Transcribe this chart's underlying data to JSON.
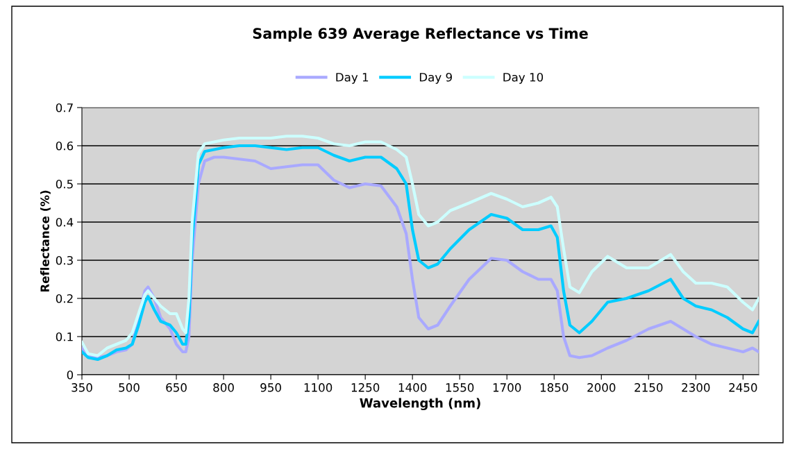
{
  "chart_data": {
    "type": "line",
    "title": "Sample 639 Average Reflectance vs Time",
    "xlabel": "Wavelength (nm)",
    "ylabel": "Reflectance (%)",
    "x": [
      350,
      370,
      400,
      430,
      460,
      490,
      510,
      530,
      550,
      560,
      580,
      600,
      630,
      650,
      670,
      680,
      690,
      700,
      720,
      740,
      770,
      800,
      850,
      900,
      950,
      1000,
      1050,
      1100,
      1150,
      1200,
      1250,
      1300,
      1350,
      1380,
      1400,
      1420,
      1450,
      1480,
      1520,
      1580,
      1650,
      1700,
      1750,
      1800,
      1840,
      1860,
      1880,
      1900,
      1930,
      1970,
      2020,
      2080,
      2150,
      2220,
      2260,
      2300,
      2350,
      2400,
      2450,
      2480,
      2500
    ],
    "series": [
      {
        "name": "Day 1",
        "color": "#a9a9ff",
        "values": [
          0.07,
          0.05,
          0.045,
          0.05,
          0.06,
          0.065,
          0.08,
          0.15,
          0.22,
          0.23,
          0.2,
          0.15,
          0.12,
          0.08,
          0.06,
          0.06,
          0.1,
          0.3,
          0.5,
          0.56,
          0.57,
          0.57,
          0.565,
          0.56,
          0.54,
          0.545,
          0.55,
          0.55,
          0.51,
          0.49,
          0.5,
          0.495,
          0.44,
          0.37,
          0.25,
          0.15,
          0.12,
          0.13,
          0.18,
          0.25,
          0.305,
          0.3,
          0.27,
          0.25,
          0.25,
          0.22,
          0.1,
          0.05,
          0.045,
          0.05,
          0.07,
          0.09,
          0.12,
          0.14,
          0.12,
          0.1,
          0.08,
          0.07,
          0.06,
          0.07,
          0.06
        ]
      },
      {
        "name": "Day 9",
        "color": "#00ccff",
        "values": [
          0.06,
          0.045,
          0.04,
          0.05,
          0.065,
          0.07,
          0.08,
          0.13,
          0.19,
          0.205,
          0.17,
          0.14,
          0.13,
          0.11,
          0.08,
          0.08,
          0.15,
          0.35,
          0.55,
          0.585,
          0.59,
          0.595,
          0.6,
          0.6,
          0.595,
          0.59,
          0.595,
          0.595,
          0.575,
          0.56,
          0.57,
          0.57,
          0.54,
          0.5,
          0.38,
          0.3,
          0.28,
          0.29,
          0.33,
          0.38,
          0.42,
          0.41,
          0.38,
          0.38,
          0.39,
          0.36,
          0.22,
          0.13,
          0.11,
          0.14,
          0.19,
          0.2,
          0.22,
          0.25,
          0.2,
          0.18,
          0.17,
          0.15,
          0.12,
          0.11,
          0.14
        ]
      },
      {
        "name": "Day 10",
        "color": "#ccffff",
        "values": [
          0.085,
          0.055,
          0.05,
          0.07,
          0.08,
          0.09,
          0.11,
          0.16,
          0.21,
          0.22,
          0.2,
          0.18,
          0.16,
          0.16,
          0.12,
          0.11,
          0.2,
          0.4,
          0.58,
          0.605,
          0.61,
          0.615,
          0.62,
          0.62,
          0.62,
          0.625,
          0.625,
          0.62,
          0.605,
          0.6,
          0.61,
          0.61,
          0.59,
          0.57,
          0.5,
          0.42,
          0.39,
          0.4,
          0.43,
          0.45,
          0.475,
          0.46,
          0.44,
          0.45,
          0.465,
          0.44,
          0.33,
          0.23,
          0.215,
          0.27,
          0.31,
          0.28,
          0.28,
          0.315,
          0.27,
          0.24,
          0.24,
          0.23,
          0.19,
          0.17,
          0.2
        ]
      }
    ],
    "xlim": [
      350,
      2500
    ],
    "xticks": [
      350,
      500,
      650,
      800,
      950,
      1100,
      1250,
      1400,
      1550,
      1700,
      1850,
      2000,
      2150,
      2300,
      2450
    ],
    "ylim": [
      0,
      0.7
    ],
    "yticks": [
      {
        "value": 0,
        "label": "0"
      },
      0.1,
      0.2,
      0.3,
      0.4,
      0.5,
      0.6,
      0.7
    ],
    "grid": "y",
    "legend": "top",
    "marker": "none",
    "line_style": "solid"
  }
}
